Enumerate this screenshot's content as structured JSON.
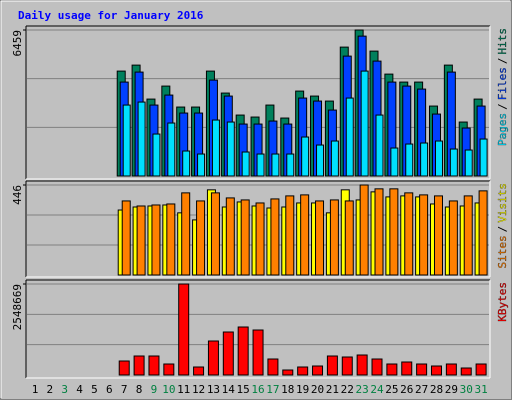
{
  "chart_data": [
    {
      "type": "bar",
      "title": "Daily usage for January 2016",
      "legend_separator": "/",
      "ylim": [
        0,
        6459
      ],
      "yticks": [
        6459
      ],
      "series": [
        {
          "name": "Hits",
          "color": "#00805c",
          "values": [
            0,
            0,
            0,
            0,
            0,
            0,
            4641,
            4906,
            3403,
            3978,
            3050,
            3050,
            4641,
            3669,
            2696,
            2608,
            3138,
            2564,
            3757,
            3536,
            3315,
            5702,
            6459,
            5525,
            4508,
            4155,
            4155,
            3094,
            4906,
            2387,
            3403
          ]
        },
        {
          "name": "Files",
          "color": "#0040ff",
          "values": [
            0,
            0,
            0,
            0,
            0,
            0,
            4155,
            4597,
            3138,
            3580,
            2785,
            2785,
            4243,
            3536,
            2298,
            2298,
            2431,
            2298,
            3448,
            3315,
            2917,
            5304,
            6188,
            5083,
            4155,
            3978,
            3845,
            2740,
            4597,
            2122,
            3094
          ]
        },
        {
          "name": "Pages",
          "color": "#00e0ff",
          "values": [
            0,
            0,
            0,
            0,
            0,
            0,
            3138,
            3271,
            1856,
            2343,
            1105,
            972,
            2475,
            2387,
            1061,
            972,
            972,
            972,
            1724,
            1370,
            1547,
            3448,
            4641,
            2696,
            1238,
            1414,
            1459,
            1547,
            1193,
            1149,
            1635
          ]
        }
      ]
    },
    {
      "type": "bar",
      "ylim": [
        0,
        446
      ],
      "yticks": [
        446
      ],
      "series": [
        {
          "name": "Visits",
          "color": "#ffff00",
          "values": [
            0,
            0,
            0,
            0,
            0,
            0,
            322,
            337,
            342,
            347,
            308,
            273,
            422,
            337,
            362,
            342,
            332,
            337,
            357,
            357,
            308,
            422,
            372,
            412,
            387,
            392,
            387,
            352,
            337,
            342,
            357
          ]
        },
        {
          "name": "Sites",
          "color": "#ff8000",
          "values": [
            0,
            0,
            0,
            0,
            0,
            0,
            367,
            342,
            347,
            352,
            407,
            367,
            407,
            382,
            372,
            357,
            377,
            392,
            397,
            367,
            372,
            367,
            446,
            427,
            427,
            407,
            397,
            392,
            367,
            392,
            417
          ]
        }
      ]
    },
    {
      "type": "bar",
      "ylim": [
        0,
        2548669
      ],
      "yticks": [
        2548669
      ],
      "categories": [
        1,
        2,
        3,
        4,
        5,
        6,
        7,
        8,
        9,
        10,
        11,
        12,
        13,
        14,
        15,
        16,
        17,
        18,
        19,
        20,
        21,
        22,
        23,
        24,
        25,
        26,
        27,
        28,
        29,
        30,
        31
      ],
      "weekend": [
        3,
        9,
        10,
        16,
        17,
        23,
        24,
        30,
        31
      ],
      "weekend_color": "#008040",
      "series": [
        {
          "name": "KBytes",
          "color": "#ff0000",
          "values": [
            0,
            0,
            0,
            0,
            0,
            0,
            392098,
            532133,
            532133,
            308077,
            2548669,
            224056,
            952238,
            1204301,
            1344336,
            1260315,
            448112,
            140035,
            224056,
            252063,
            532133,
            504126,
            560140,
            448112,
            308077,
            364091,
            308077,
            252063,
            308077,
            196049,
            308077
          ]
        }
      ]
    }
  ]
}
